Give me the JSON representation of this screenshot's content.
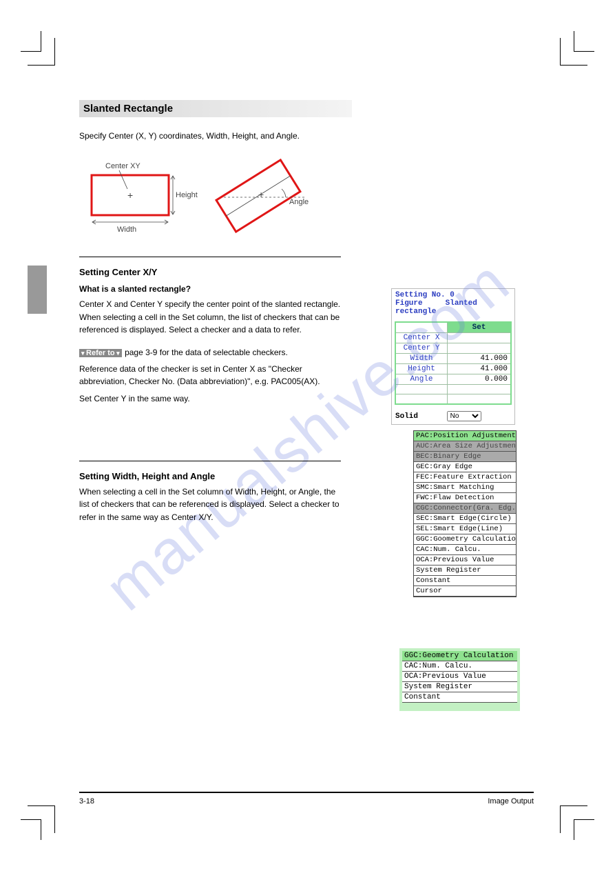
{
  "watermark": "manualshive.com",
  "section": {
    "title": "Slanted Rectangle",
    "intro": "Specify Center (X, Y) coordinates, Width, Height, and Angle.",
    "diagram": {
      "labels": {
        "centerXY": "Center XY",
        "height": "Height",
        "width": "Width",
        "angle": "Angle"
      },
      "rect_color": "#e01616",
      "annot_color": "#444444"
    }
  },
  "step1": {
    "heading": "Setting Center X/Y",
    "q": "What is a slanted rectangle?",
    "body": "Center X and Center Y specify the center point of the slanted rectangle. When selecting a cell in the Set column, the list of checkers that can be referenced is displayed. Select a checker and a data to refer.",
    "refer_label": "Refer to",
    "refer_text": "page 3-9 for the data of selectable checkers.",
    "p2": "Reference data of the checker is set in Center X as \"Checker abbreviation, Checker No. (Data abbreviation)\", e.g. PAC005(AX).",
    "p3": "Set Center Y in the same way."
  },
  "settings_panel": {
    "setting_no_label": "Setting No.",
    "setting_no_value": "0",
    "figure_label": "Figure",
    "figure_value": "Slanted rectangle",
    "col_header": "Set",
    "rows": [
      {
        "label": "Center X",
        "value": ""
      },
      {
        "label": "Center Y",
        "value": ""
      },
      {
        "label": "Width",
        "value": "41.000"
      },
      {
        "label": "Height",
        "value": "41.000"
      },
      {
        "label": "Angle",
        "value": "0.000"
      }
    ],
    "footer_label": "Solid",
    "footer_value": "No"
  },
  "checker_list": [
    {
      "text": "PAC:Position Adjustment",
      "style": "hilite"
    },
    {
      "text": "AUC:Area Size Adjustment",
      "style": "dim"
    },
    {
      "text": "BEC:Binary Edge",
      "style": "dim"
    },
    {
      "text": "GEC:Gray Edge",
      "style": ""
    },
    {
      "text": "FEC:Feature Extraction",
      "style": ""
    },
    {
      "text": "SMC:Smart Matching",
      "style": ""
    },
    {
      "text": "FWC:Flaw Detection",
      "style": ""
    },
    {
      "text": "CGC:Connector(Gra. Edg.)",
      "style": "dim"
    },
    {
      "text": "SEC:Smart Edge(Circle)",
      "style": ""
    },
    {
      "text": "SEL:Smart Edge(Line)",
      "style": ""
    },
    {
      "text": "GGC:Goometry Calculation",
      "style": ""
    },
    {
      "text": "CAC:Num. Calcu.",
      "style": ""
    },
    {
      "text": "OCA:Previous Value",
      "style": ""
    },
    {
      "text": "System Register",
      "style": ""
    },
    {
      "text": "Constant",
      "style": ""
    },
    {
      "text": "Cursor",
      "style": ""
    }
  ],
  "step2": {
    "heading": "Setting Width, Height and Angle",
    "body": "When selecting a cell in the Set column of Width, Height, or Angle, the list of checkers that can be referenced is displayed. Select a checker to refer in the same way as Center X/Y."
  },
  "list2": [
    {
      "text": "GGC:Geometry Calculation",
      "style": "hilite"
    },
    {
      "text": "CAC:Num. Calcu.",
      "style": ""
    },
    {
      "text": "OCA:Previous Value",
      "style": ""
    },
    {
      "text": "System Register",
      "style": ""
    },
    {
      "text": "Constant",
      "style": ""
    }
  ],
  "footer": {
    "left": "3-18",
    "right": "Image Output"
  }
}
